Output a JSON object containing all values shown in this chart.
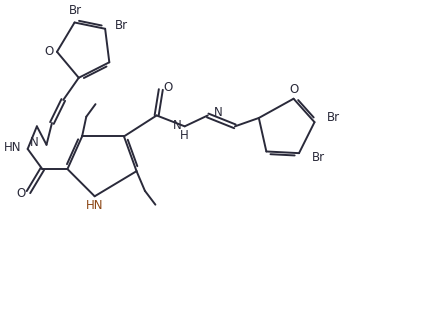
{
  "background_color": "#ffffff",
  "line_color": "#2a2a3a",
  "label_color": "#2a2a3a",
  "lw": 1.4,
  "fs": 8.5,
  "figsize": [
    4.22,
    3.13
  ],
  "dpi": 100,
  "xlim": [
    0,
    10
  ],
  "ylim": [
    0,
    7.4
  ]
}
